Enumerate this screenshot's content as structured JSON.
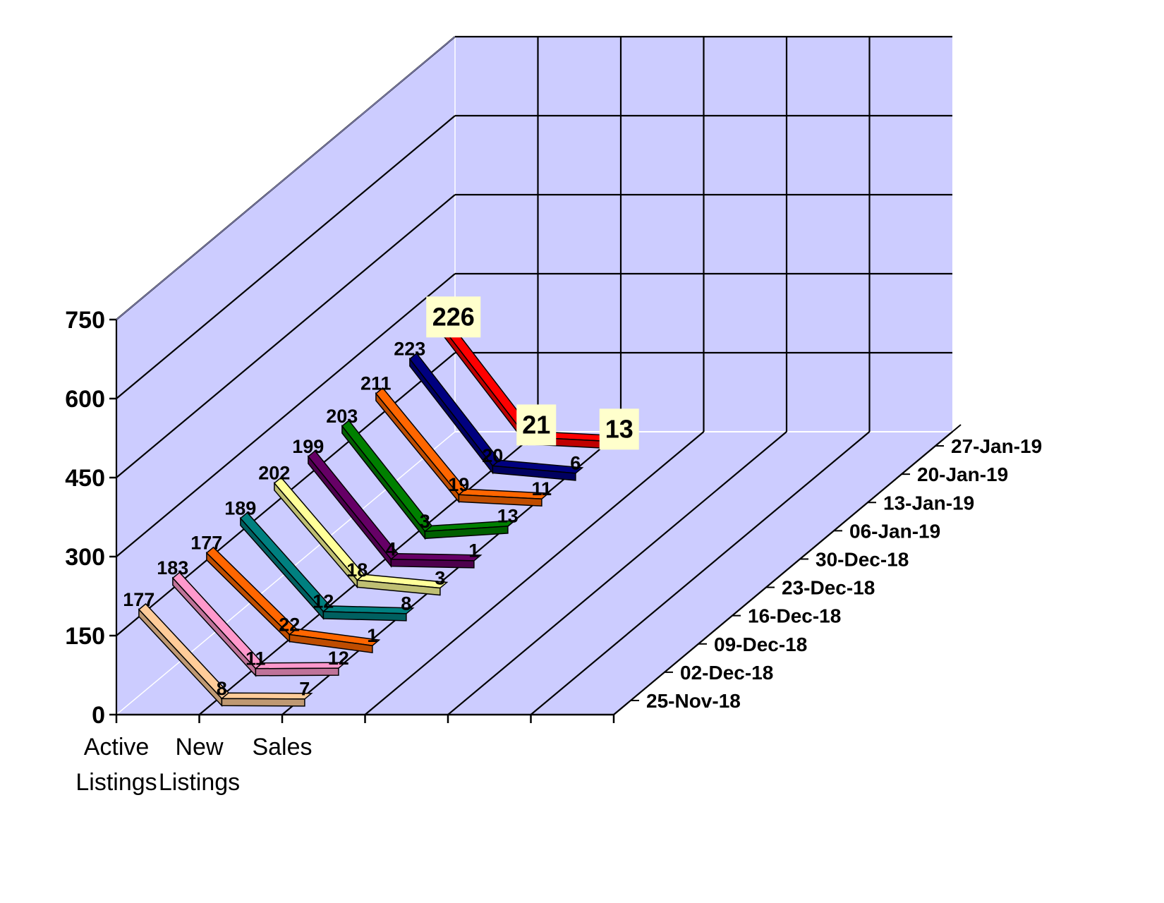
{
  "chart_data": {
    "type": "line",
    "style": "3d-ribbon",
    "title": "",
    "xlabel": "",
    "ylabel": "",
    "categories": [
      "Active Listings",
      "New Listings",
      "Sales"
    ],
    "category_lines": [
      [
        "Active",
        "Listings"
      ],
      [
        "New",
        "Listings"
      ],
      [
        "Sales",
        ""
      ]
    ],
    "ylim": [
      0,
      750
    ],
    "yticks": [
      "0",
      "150",
      "300",
      "450",
      "600",
      "750"
    ],
    "grid": true,
    "series": [
      {
        "name": "25-Nov-18",
        "values": [
          177,
          8,
          7
        ],
        "color": "#ffcc99"
      },
      {
        "name": "02-Dec-18",
        "values": [
          183,
          11,
          12
        ],
        "color": "#ff99cc"
      },
      {
        "name": "09-Dec-18",
        "values": [
          177,
          22,
          1
        ],
        "color": "#ff6600"
      },
      {
        "name": "16-Dec-18",
        "values": [
          189,
          12,
          8
        ],
        "color": "#008080"
      },
      {
        "name": "23-Dec-18",
        "values": [
          202,
          18,
          3
        ],
        "color": "#ffff99"
      },
      {
        "name": "30-Dec-18",
        "values": [
          199,
          4,
          1
        ],
        "color": "#660066"
      },
      {
        "name": "06-Jan-19",
        "values": [
          203,
          3,
          13
        ],
        "color": "#008000"
      },
      {
        "name": "13-Jan-19",
        "values": [
          211,
          19,
          11
        ],
        "color": "#ff6600"
      },
      {
        "name": "20-Jan-19",
        "values": [
          223,
          20,
          6
        ],
        "color": "#000080"
      },
      {
        "name": "27-Jan-19",
        "values": [
          226,
          21,
          13
        ],
        "color": "#ff0000"
      }
    ],
    "label_strings": [
      [
        "177",
        "8",
        "7"
      ],
      [
        "183",
        "11",
        "12"
      ],
      [
        "177",
        "22",
        "1"
      ],
      [
        "189",
        "12",
        "8"
      ],
      [
        "202",
        "18",
        "3"
      ],
      [
        "199",
        "4",
        "1"
      ],
      [
        "203",
        "3",
        "13"
      ],
      [
        "211",
        "19",
        "11"
      ],
      [
        "223",
        "20",
        "6"
      ],
      [
        "226",
        "21",
        "13"
      ]
    ],
    "highlighted_series": "27-Jan-19",
    "colors": {
      "wall": "#ccccff",
      "grid": "#000000",
      "label_box": "#ffffcc"
    }
  }
}
